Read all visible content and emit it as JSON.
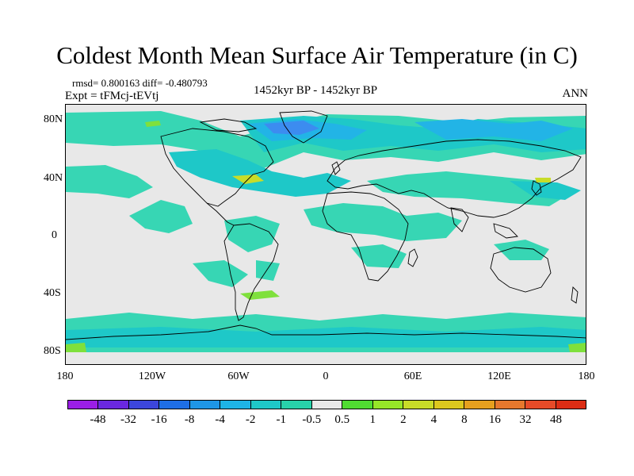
{
  "title": "Coldest Month Mean Surface Air Temperature (in C)",
  "stats": "rmsd= 0.800163 diff= -0.480793",
  "experiment": "Expt = tFMcj-tEVtj",
  "period": "1452kyr BP - 1452kyr BP",
  "season": "ANN",
  "colors": {
    "neutral": "#e8e8e8",
    "cool_light": "#37d6b4",
    "cool": "#1ec8c8",
    "cool_mid": "#22b4e6",
    "cool_strong": "#3c8cf0",
    "warm_light": "#7fe03c",
    "warm": "#c8dc28"
  },
  "map": {
    "projection": "cylindrical-equidistant",
    "lon_range": [
      -180,
      180
    ],
    "lat_range": [
      -90,
      90
    ],
    "x_ticks": [
      {
        "lon": -180,
        "label": "180"
      },
      {
        "lon": -120,
        "label": "120W"
      },
      {
        "lon": -60,
        "label": "60W"
      },
      {
        "lon": 0,
        "label": "0"
      },
      {
        "lon": 60,
        "label": "60E"
      },
      {
        "lon": 120,
        "label": "120E"
      },
      {
        "lon": 180,
        "label": "180"
      }
    ],
    "y_ticks": [
      {
        "lat": 80,
        "label": "80N"
      },
      {
        "lat": 40,
        "label": "40N"
      },
      {
        "lat": 0,
        "label": "0"
      },
      {
        "lat": -40,
        "label": "40S"
      },
      {
        "lat": -80,
        "label": "80S"
      }
    ]
  },
  "colorbar": {
    "colors": [
      "#9b1ee6",
      "#6a28e0",
      "#3c46dc",
      "#1e6ee6",
      "#1e96e6",
      "#1eb4e6",
      "#1ec8c8",
      "#28d2aa",
      "#e8e8e8",
      "#50dc32",
      "#96e628",
      "#c8dc28",
      "#dcc81e",
      "#e6a01e",
      "#e6782d",
      "#e64b28",
      "#dc2d14"
    ],
    "labels": [
      "-48",
      "-32",
      "-16",
      "-8",
      "-4",
      "-2",
      "-1",
      "-0.5",
      "0.5",
      "1",
      "2",
      "4",
      "8",
      "16",
      "32",
      "48"
    ]
  }
}
